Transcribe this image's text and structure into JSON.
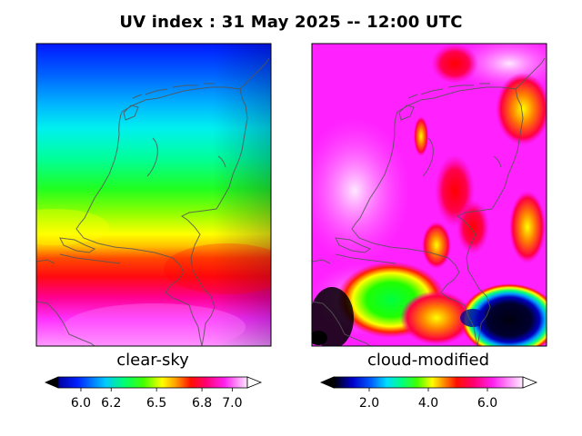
{
  "title": "UV index :  31 May 2025  --  12:00 UTC",
  "panels": [
    {
      "caption": "clear-sky",
      "colorbar": {
        "min": 5.85,
        "max": 7.1,
        "ticks": [
          6.0,
          6.2,
          6.5,
          6.8,
          7.0
        ],
        "tick_labels": [
          "6.0",
          "6.2",
          "6.5",
          "6.8",
          "7.0"
        ]
      }
    },
    {
      "caption": "cloud-modified",
      "colorbar": {
        "min": 0.8,
        "max": 7.2,
        "ticks": [
          2.0,
          4.0,
          6.0
        ],
        "tick_labels": [
          "2.0",
          "4.0",
          "6.0"
        ]
      }
    }
  ],
  "colormap": [
    "#000000",
    "#0000cc",
    "#0044ff",
    "#00aaff",
    "#00ffee",
    "#00ff66",
    "#22ff00",
    "#aaff00",
    "#ffff00",
    "#ffaa00",
    "#ff3300",
    "#ff0066",
    "#ff00cc",
    "#ff33ff",
    "#ffaaff",
    "#ffffff"
  ],
  "boundary_color": "#555555"
}
